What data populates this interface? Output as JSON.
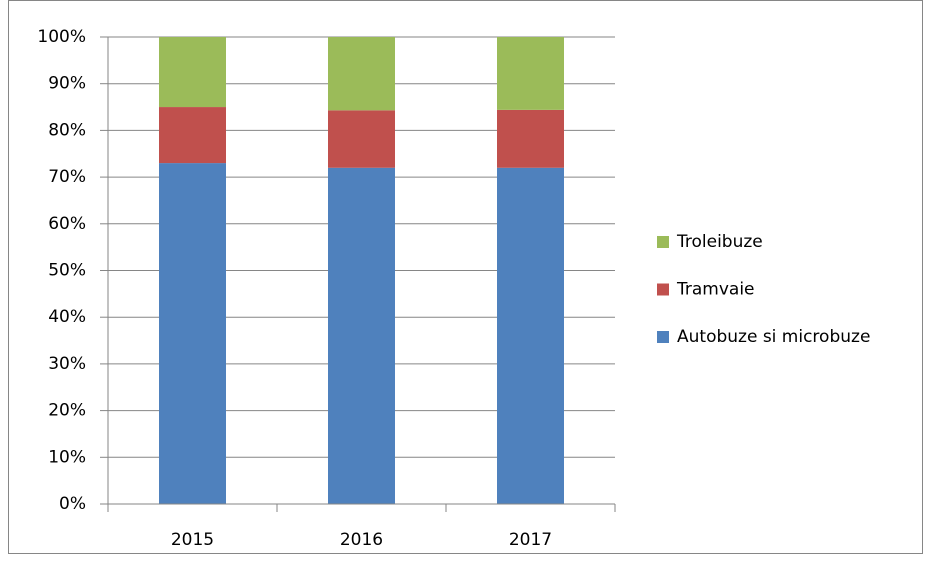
{
  "chart_data": {
    "type": "stacked_bar",
    "categories": [
      "2015",
      "2016",
      "2017"
    ],
    "series": [
      {
        "name": "Autobuze si microbuze",
        "color": "#4f81bd",
        "values": [
          73,
          72,
          72
        ]
      },
      {
        "name": "Tramvaie",
        "color": "#c0504d",
        "values": [
          12,
          12.3,
          12.4
        ]
      },
      {
        "name": "Troleibuze",
        "color": "#9bbb59",
        "values": [
          15,
          15.7,
          15.6
        ]
      }
    ],
    "ylim": [
      0,
      100
    ],
    "yticks": [
      {
        "value": 0,
        "label": "0%"
      },
      {
        "value": 10,
        "label": "10%"
      },
      {
        "value": 20,
        "label": "20%"
      },
      {
        "value": 30,
        "label": "30%"
      },
      {
        "value": 40,
        "label": "40%"
      },
      {
        "value": 50,
        "label": "50%"
      },
      {
        "value": 60,
        "label": "60%"
      },
      {
        "value": 70,
        "label": "70%"
      },
      {
        "value": 80,
        "label": "80%"
      },
      {
        "value": 90,
        "label": "90%"
      },
      {
        "value": 100,
        "label": "100%"
      }
    ],
    "grid": true,
    "legend": "right"
  }
}
